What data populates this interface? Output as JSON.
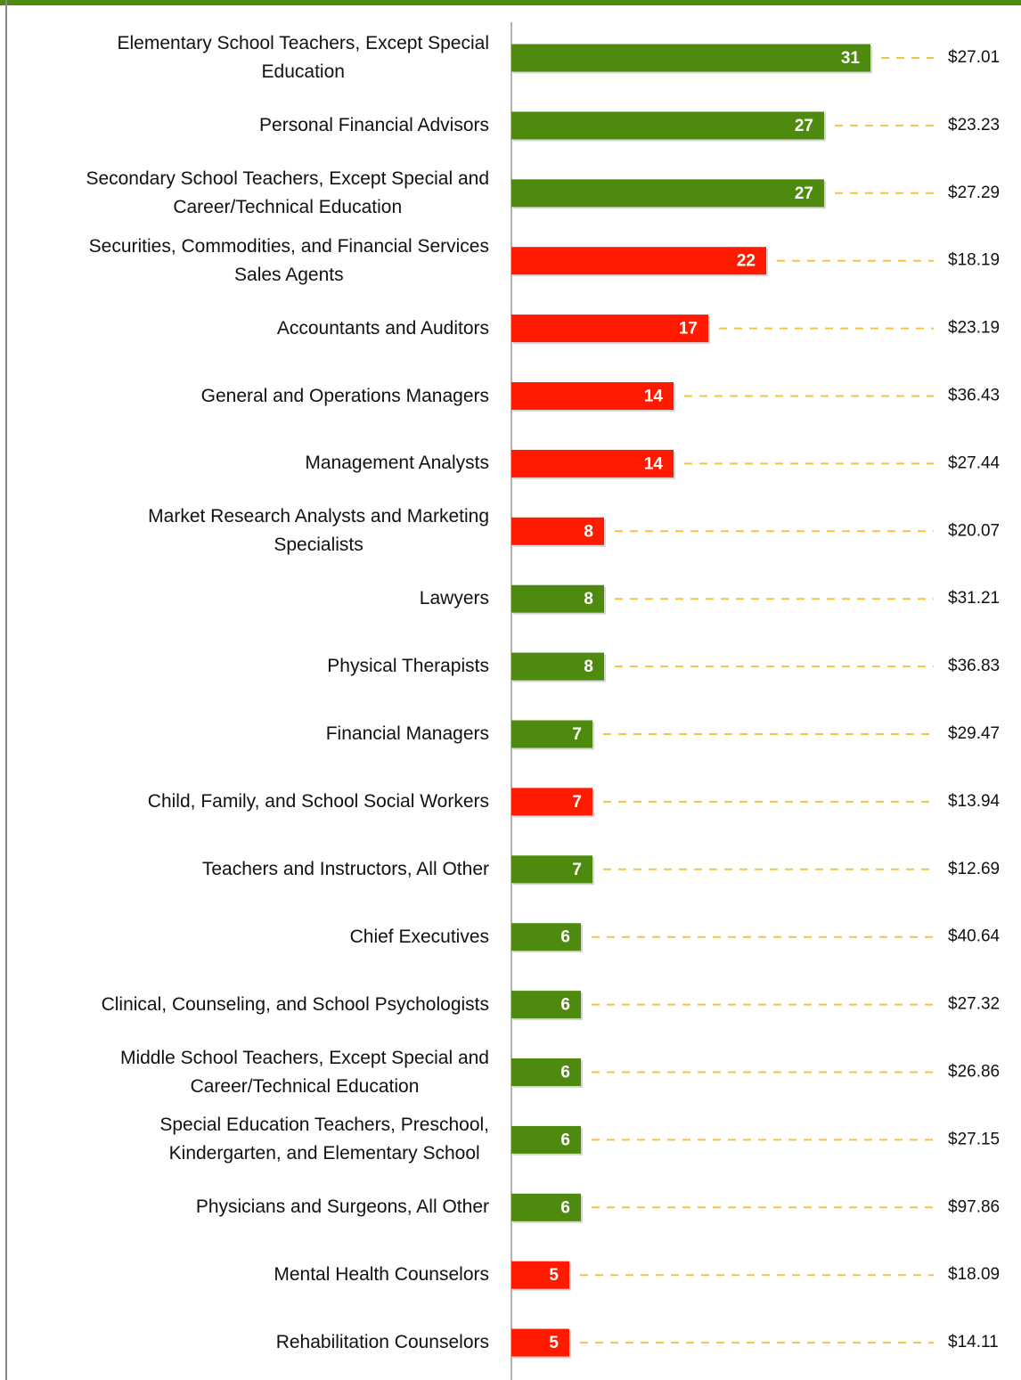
{
  "chart_data": {
    "type": "bar",
    "orientation": "horizontal",
    "categories": [
      "Elementary School Teachers, Except Special\nEducation",
      "Personal Financial Advisors",
      "Secondary School Teachers, Except Special and\nCareer/Technical Education",
      "Securities, Commodities, and Financial Services\nSales Agents",
      "Accountants and Auditors",
      "General and Operations Managers",
      "Management Analysts",
      "Market Research Analysts and Marketing\nSpecialists",
      "Lawyers",
      "Physical Therapists",
      "Financial Managers",
      "Child, Family, and School Social Workers",
      "Teachers and Instructors, All Other",
      "Chief Executives",
      "Clinical, Counseling, and School Psychologists",
      "Middle School Teachers, Except Special and\nCareer/Technical Education",
      "Special Education Teachers, Preschool,\nKindergarten, and Elementary School",
      "Physicians and Surgeons, All Other",
      "Mental Health Counselors",
      "Rehabilitation Counselors"
    ],
    "series": [
      {
        "values": [
          31,
          27,
          27,
          22,
          17,
          14,
          14,
          8,
          8,
          8,
          7,
          7,
          7,
          6,
          6,
          6,
          6,
          6,
          5,
          5
        ],
        "colors": [
          "#4e8a0e",
          "#4e8a0e",
          "#4e8a0e",
          "#ff1a00",
          "#ff1a00",
          "#ff1a00",
          "#ff1a00",
          "#ff1a00",
          "#4e8a0e",
          "#4e8a0e",
          "#4e8a0e",
          "#ff1a00",
          "#4e8a0e",
          "#4e8a0e",
          "#4e8a0e",
          "#4e8a0e",
          "#4e8a0e",
          "#4e8a0e",
          "#ff1a00",
          "#ff1a00"
        ]
      },
      {
        "values": [
          27.01,
          23.23,
          27.29,
          18.19,
          23.19,
          36.43,
          27.44,
          20.07,
          31.21,
          36.83,
          29.47,
          13.94,
          12.69,
          40.64,
          27.32,
          26.86,
          27.15,
          97.86,
          18.09,
          14.11
        ],
        "value_labels": [
          "$27.01",
          "$23.23",
          "$27.29",
          "$18.19",
          "$23.19",
          "$36.43",
          "$27.44",
          "$20.07",
          "$31.21",
          "$36.83",
          "$29.47",
          "$13.94",
          "$12.69",
          "$40.64",
          "$27.32",
          "$26.86",
          "$27.15",
          "$97.86",
          "$18.09",
          "$14.11"
        ],
        "color": "#f5c242"
      }
    ],
    "xlim": [
      0,
      40
    ]
  }
}
